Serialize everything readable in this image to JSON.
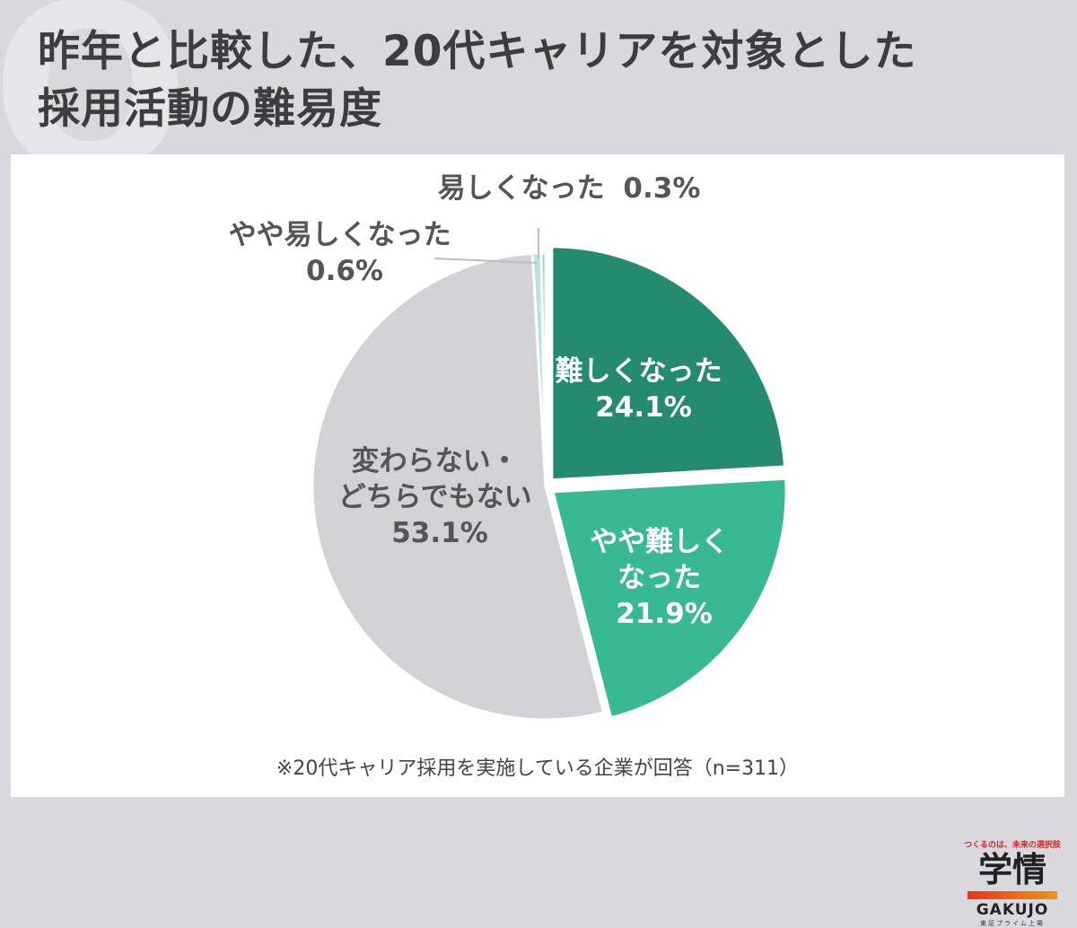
{
  "header": {
    "title_line1": "昨年と比較した、20代キャリアを対象とした",
    "title_line2": "採用活動の難易度"
  },
  "chart_data": {
    "type": "pie",
    "title": "昨年と比較した、20代キャリアを対象とした採用活動の難易度",
    "slices": [
      {
        "label_lines": [
          "難しくなった"
        ],
        "value_label": "24.1%",
        "value": 24.1,
        "color": "#258b70"
      },
      {
        "label_lines": [
          "やや難しく",
          "なった"
        ],
        "value_label": "21.9%",
        "value": 21.9,
        "color": "#38b994"
      },
      {
        "label_lines": [
          "変わらない・",
          "どちらでもない"
        ],
        "value_label": "53.1%",
        "value": 53.1,
        "color": "#d2d1d3"
      },
      {
        "label_lines": [
          "やや易しくなった"
        ],
        "value_label": "0.6%",
        "value": 0.6,
        "color": "#b9e4dc"
      },
      {
        "label_lines": [
          "易しくなった"
        ],
        "value_label": "0.3%",
        "value": 0.3,
        "color": "#8fd3c8"
      }
    ]
  },
  "footnote": "※20代キャリア採用を実施している企業が回答（n=311）",
  "logo": {
    "tagline": "つくるのは、未来の選択肢",
    "name_jp": "学情",
    "name_en": "GAKUJO",
    "sub": "東証プライム上場"
  }
}
